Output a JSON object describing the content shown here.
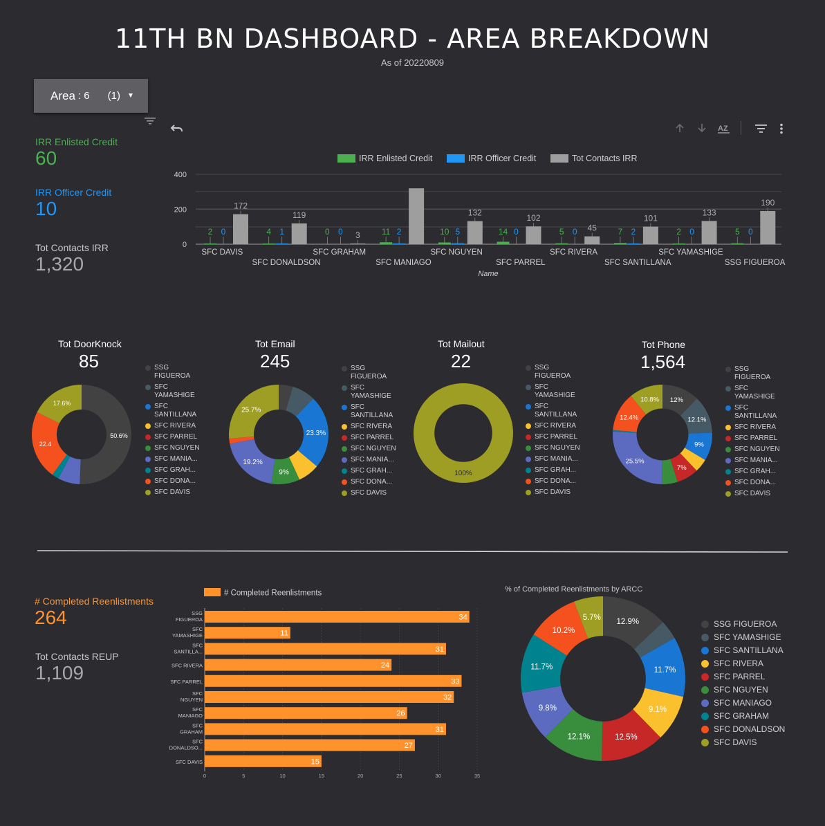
{
  "header": {
    "title": "11TH BN DASHBOARD - AREA BREAKDOWN",
    "subtitle": "As of 20220809"
  },
  "filter": {
    "label": "Area",
    "value": ": 6",
    "count": "(1)"
  },
  "colors": {
    "green": "#4caf50",
    "blue": "#2196f3",
    "gray": "#9e9e9e",
    "orange": "#ff922b",
    "text_dim": "#c8c8c8"
  },
  "kpis": {
    "irr_enlisted": {
      "label": "IRR Enlisted Credit",
      "value": "60"
    },
    "irr_officer": {
      "label": "IRR Officer Credit",
      "value": "10"
    },
    "tot_contacts_irr": {
      "label": "Tot Contacts IRR",
      "value": "1,320"
    },
    "completed_reenlistments": {
      "label": "# Completed Reenlistments",
      "value": "264"
    },
    "tot_contacts_reup": {
      "label": "Tot Contacts REUP",
      "value": "1,109"
    }
  },
  "legend_names": [
    "SSG FIGUEROA",
    "SFC YAMASHIGE",
    "SFC SANTILLANA",
    "SFC RIVERA",
    "SFC PARREL",
    "SFC NGUYEN",
    "SFC MANIAGO",
    "SFC GRAHAM",
    "SFC DONALDSON",
    "SFC DAVIS"
  ],
  "legend_colors": [
    "#424242",
    "#455a64",
    "#1976d2",
    "#fbc02d",
    "#c62828",
    "#388e3c",
    "#5c6bc0",
    "#00838f",
    "#f4511e",
    "#9e9d24"
  ],
  "chart_data": [
    {
      "id": "irr_bar",
      "type": "bar",
      "xlabel": "Name",
      "ylim": [
        0,
        400
      ],
      "yticks": [
        0,
        200,
        400
      ],
      "categories": [
        "SFC DAVIS",
        "SFC DONALDSON",
        "SFC GRAHAM",
        "SFC MANIAGO",
        "SFC NGUYEN",
        "SFC PARREL",
        "SFC RIVERA",
        "SFC SANTILLANA",
        "SFC YAMASHIGE",
        "SSG FIGUEROA"
      ],
      "series": [
        {
          "name": "IRR Enlisted Credit",
          "values": [
            2,
            4,
            0,
            11,
            10,
            14,
            5,
            7,
            2,
            5
          ]
        },
        {
          "name": "IRR Officer Credit",
          "values": [
            0,
            1,
            0,
            2,
            5,
            0,
            0,
            2,
            0,
            0
          ]
        },
        {
          "name": "Tot Contacts IRR",
          "values": [
            172,
            119,
            3,
            320,
            132,
            102,
            45,
            101,
            133,
            190
          ]
        }
      ],
      "labels": [
        [
          "2",
          "4",
          "0",
          "11",
          "10",
          "14",
          "5",
          "7",
          "2",
          "5"
        ],
        [
          "0",
          "1",
          "0",
          "2",
          "5",
          "0",
          "0",
          "2",
          "0",
          "0"
        ],
        [
          "172",
          "119",
          "3",
          "",
          "132",
          "102",
          "45",
          "101",
          "133",
          "190"
        ]
      ]
    },
    {
      "id": "doorknock",
      "type": "pie",
      "title": "Tot DoorKnock",
      "total": "85",
      "values": [
        50.6,
        0,
        0,
        0,
        0,
        0,
        7.1,
        2.3,
        22.4,
        17.6
      ],
      "labels": [
        "50.6%",
        "",
        "",
        "",
        "",
        "",
        "",
        "",
        "22.4",
        "17.6%"
      ]
    },
    {
      "id": "email",
      "type": "pie",
      "title": "Tot Email",
      "total": "245",
      "values": [
        4.5,
        7.4,
        23.3,
        6.9,
        0,
        9,
        19.2,
        0,
        1.6,
        25.7
      ],
      "labels": [
        "",
        "",
        "23.3%",
        "",
        "",
        "9%",
        "19.2%",
        "",
        "",
        "25.7%"
      ]
    },
    {
      "id": "mailout",
      "type": "pie",
      "title": "Tot Mailout",
      "total": "22",
      "values": [
        0,
        0,
        0,
        0,
        0,
        0,
        0,
        0,
        0,
        100
      ],
      "labels": [
        "",
        "",
        "",
        "",
        "",
        "",
        "",
        "",
        "",
        "100%"
      ]
    },
    {
      "id": "phone",
      "type": "pie",
      "title": "Tot Phone",
      "total": "1,564",
      "values": [
        12,
        12.1,
        9,
        4.3,
        7,
        4.9,
        25.5,
        0.5,
        12.4,
        10.8
      ],
      "labels": [
        "12%",
        "12.1%",
        "9%",
        "",
        "7%",
        "",
        "25.5%",
        "",
        "12.4%",
        "10.8%"
      ]
    },
    {
      "id": "reenlist_bar",
      "type": "bar",
      "orientation": "horizontal",
      "legend": "# Completed Reenlistments",
      "xlim": [
        0,
        35
      ],
      "xticks": [
        0,
        5,
        10,
        15,
        20,
        25,
        30,
        35
      ],
      "categories": [
        [
          "SSG",
          "FIGUEROA"
        ],
        [
          "SFC",
          "YAMASHIGE"
        ],
        [
          "SFC",
          "SANTILLA..."
        ],
        [
          "SFC RIVERA"
        ],
        [
          "SFC PARREL"
        ],
        [
          "SFC",
          "NGUYEN"
        ],
        [
          "SFC",
          "MANIAGO"
        ],
        [
          "SFC",
          "GRAHAM"
        ],
        [
          "SFC",
          "DONALDSO..."
        ],
        [
          "SFC DAVIS"
        ]
      ],
      "values": [
        34,
        11,
        31,
        24,
        33,
        32,
        26,
        31,
        27,
        15
      ]
    },
    {
      "id": "reenlist_pie",
      "type": "pie",
      "title": "% of Completed Reenlistments by ARCC",
      "values": [
        12.9,
        3.8,
        11.7,
        9.1,
        12.5,
        12.1,
        9.8,
        11.7,
        10.2,
        5.7
      ],
      "labels": [
        "12.9%",
        "",
        "11.7%",
        "9.1%",
        "12.5%",
        "12.1%",
        "9.8%",
        "11.7%",
        "10.2%",
        "5.7%"
      ]
    }
  ]
}
